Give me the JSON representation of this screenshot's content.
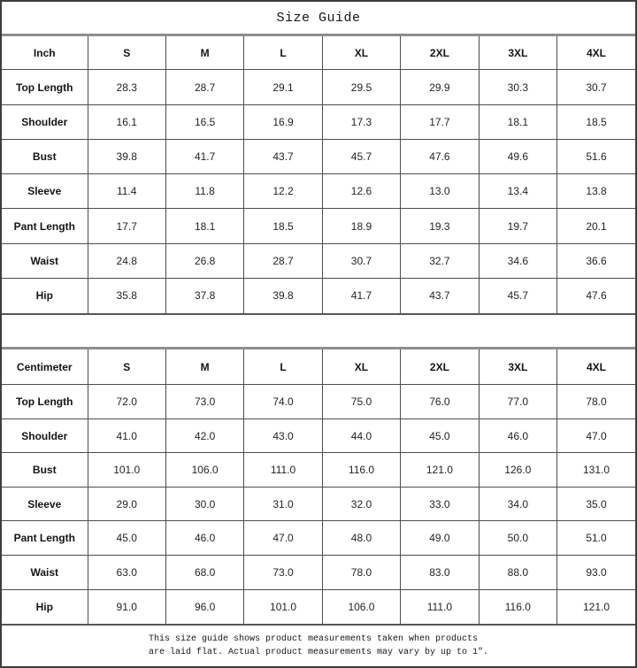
{
  "title": "Size Guide",
  "tables": [
    {
      "unit_label": "Inch",
      "sizes": [
        "S",
        "M",
        "L",
        "XL",
        "2XL",
        "3XL",
        "4XL"
      ],
      "rows": [
        {
          "label": "Top Length",
          "values": [
            "28.3",
            "28.7",
            "29.1",
            "29.5",
            "29.9",
            "30.3",
            "30.7"
          ]
        },
        {
          "label": "Shoulder",
          "values": [
            "16.1",
            "16.5",
            "16.9",
            "17.3",
            "17.7",
            "18.1",
            "18.5"
          ]
        },
        {
          "label": "Bust",
          "values": [
            "39.8",
            "41.7",
            "43.7",
            "45.7",
            "47.6",
            "49.6",
            "51.6"
          ]
        },
        {
          "label": "Sleeve",
          "values": [
            "11.4",
            "11.8",
            "12.2",
            "12.6",
            "13.0",
            "13.4",
            "13.8"
          ]
        },
        {
          "label": "Pant Length",
          "values": [
            "17.7",
            "18.1",
            "18.5",
            "18.9",
            "19.3",
            "19.7",
            "20.1"
          ]
        },
        {
          "label": "Waist",
          "values": [
            "24.8",
            "26.8",
            "28.7",
            "30.7",
            "32.7",
            "34.6",
            "36.6"
          ]
        },
        {
          "label": "Hip",
          "values": [
            "35.8",
            "37.8",
            "39.8",
            "41.7",
            "43.7",
            "45.7",
            "47.6"
          ]
        }
      ]
    },
    {
      "unit_label": "Centimeter",
      "sizes": [
        "S",
        "M",
        "L",
        "XL",
        "2XL",
        "3XL",
        "4XL"
      ],
      "rows": [
        {
          "label": "Top Length",
          "values": [
            "72.0",
            "73.0",
            "74.0",
            "75.0",
            "76.0",
            "77.0",
            "78.0"
          ]
        },
        {
          "label": "Shoulder",
          "values": [
            "41.0",
            "42.0",
            "43.0",
            "44.0",
            "45.0",
            "46.0",
            "47.0"
          ]
        },
        {
          "label": "Bust",
          "values": [
            "101.0",
            "106.0",
            "111.0",
            "116.0",
            "121.0",
            "126.0",
            "131.0"
          ]
        },
        {
          "label": "Sleeve",
          "values": [
            "29.0",
            "30.0",
            "31.0",
            "32.0",
            "33.0",
            "34.0",
            "35.0"
          ]
        },
        {
          "label": "Pant Length",
          "values": [
            "45.0",
            "46.0",
            "47.0",
            "48.0",
            "49.0",
            "50.0",
            "51.0"
          ]
        },
        {
          "label": "Waist",
          "values": [
            "63.0",
            "68.0",
            "73.0",
            "78.0",
            "83.0",
            "88.0",
            "93.0"
          ]
        },
        {
          "label": "Hip",
          "values": [
            "91.0",
            "96.0",
            "101.0",
            "106.0",
            "111.0",
            "116.0",
            "121.0"
          ]
        }
      ]
    }
  ],
  "footer": {
    "line1": "This size guide shows product measurements taken when products",
    "line2": "are laid flat. Actual product measurements may vary by up to 1″."
  },
  "colors": {
    "background": "#ffffff",
    "text": "#1c1c1c",
    "border_thin": "#4d4d4d",
    "border_thick": "#8e8e8e",
    "border_outer": "#3c3c3c"
  }
}
